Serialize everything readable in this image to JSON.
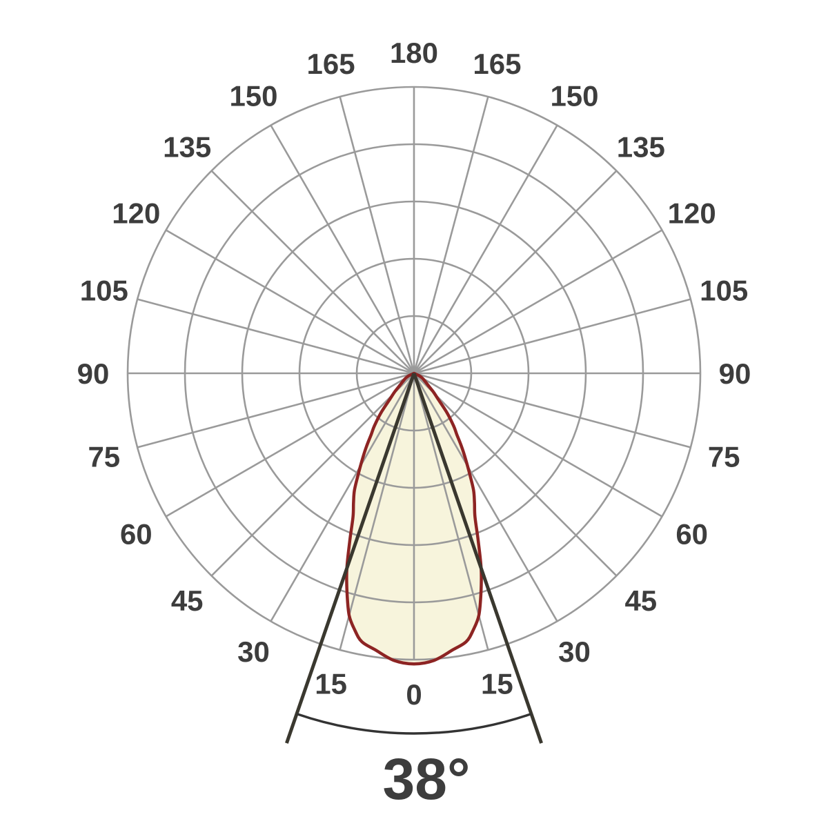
{
  "chart_data": {
    "type": "polar",
    "subtype": "photometric-light-distribution-curve",
    "title": "",
    "beam_angle_label": "38°",
    "beam_angle_deg": 38,
    "half_beam_deg": 19,
    "angle_unit": "degrees",
    "angle_tick_step_deg": 15,
    "angle_ticks": [
      "0",
      "15",
      "30",
      "45",
      "60",
      "75",
      "90",
      "105",
      "120",
      "135",
      "150",
      "165",
      "180"
    ],
    "radial_rings": 5,
    "radial_tick_labels": [],
    "grid": "on",
    "curve": {
      "name": "luminous-intensity-distribution",
      "symmetric": true,
      "angles_deg": [
        0,
        4,
        8,
        11,
        13,
        15,
        17,
        19,
        21,
        23,
        25,
        27,
        29,
        31,
        33,
        35,
        37,
        40,
        43,
        46,
        50,
        55,
        60,
        65,
        70
      ],
      "relative_radius": [
        1.015,
        1.005,
        0.975,
        0.955,
        0.92,
        0.875,
        0.8,
        0.72,
        0.625,
        0.545,
        0.5,
        0.458,
        0.4,
        0.35,
        0.305,
        0.26,
        0.23,
        0.178,
        0.123,
        0.095,
        0.063,
        0.045,
        0.034,
        0.02,
        0.0
      ]
    },
    "colors": {
      "background": "#ffffff",
      "grid": "#9a9a9a",
      "tick_labels": "#3d3d3d",
      "curve_stroke": "#8d2423",
      "curve_fill": "#f7f4dc",
      "beam_lines": "#3a382f",
      "beam_arc": "#333333",
      "beam_angle_text": "#3d3d3d"
    }
  }
}
